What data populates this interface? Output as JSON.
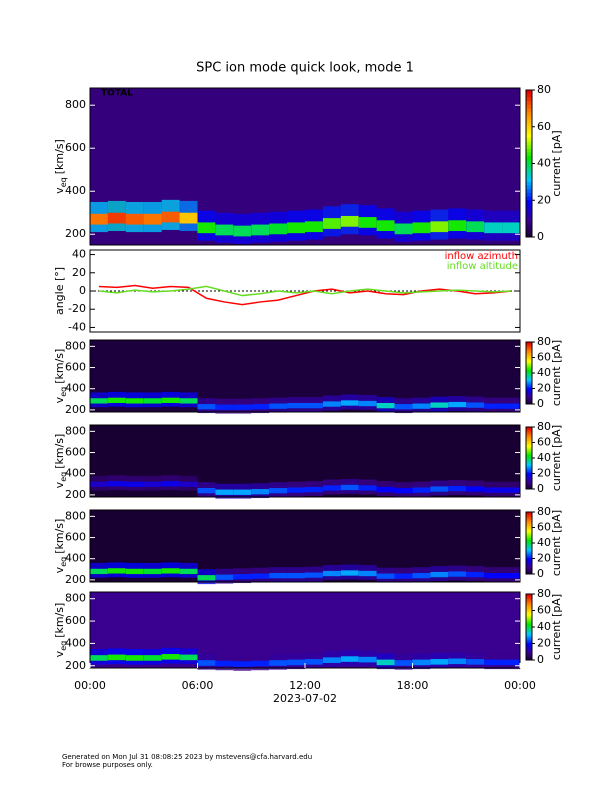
{
  "chart_data": [
    {
      "type": "spectrogram",
      "title": "SPC ion mode quick look, mode 1",
      "annotation": "TOTAL",
      "ylabel": {
        "symbol": "v",
        "subscript": "eq",
        "unit": "[km/s]"
      },
      "x": [
        0,
        1,
        2,
        3,
        4,
        5,
        6,
        7,
        8,
        9,
        10,
        11,
        12,
        13,
        14,
        15,
        16,
        17,
        18,
        19,
        20,
        21,
        22,
        23
      ],
      "values": [
        270,
        275,
        270,
        270,
        280,
        275,
        230,
        220,
        215,
        220,
        225,
        230,
        235,
        250,
        260,
        255,
        240,
        225,
        230,
        235,
        240,
        235,
        230,
        230
      ],
      "current": [
        70,
        75,
        72,
        70,
        72,
        62,
        45,
        40,
        40,
        40,
        42,
        45,
        45,
        48,
        50,
        45,
        45,
        40,
        45,
        50,
        45,
        40,
        35,
        35
      ],
      "background_current": 8,
      "xlim": [
        0,
        24
      ],
      "ylim": [
        150,
        880
      ],
      "yticks": [
        200,
        400,
        600,
        800
      ],
      "colorbar": {
        "label": "current [pA]",
        "lim": [
          0,
          80
        ],
        "ticks": [
          0,
          20,
          40,
          60,
          80
        ]
      }
    },
    {
      "type": "line",
      "ylabel": "angle [°]",
      "x": [
        0,
        1,
        2,
        3,
        4,
        5,
        6,
        7,
        8,
        9,
        10,
        11,
        12,
        13,
        14,
        15,
        16,
        17,
        18,
        19,
        20,
        21,
        22,
        23
      ],
      "series": [
        {
          "name": "inflow azimuth",
          "color": "#ff0000",
          "values": [
            5,
            4,
            6,
            3,
            5,
            4,
            -8,
            -12,
            -15,
            -12,
            -10,
            -5,
            0,
            2,
            -2,
            0,
            -3,
            -4,
            0,
            2,
            0,
            -3,
            -2,
            0
          ]
        },
        {
          "name": "inflow altitude",
          "color": "#66dd22",
          "values": [
            0,
            -2,
            1,
            -1,
            0,
            2,
            5,
            0,
            -5,
            -3,
            0,
            -2,
            0,
            -3,
            0,
            2,
            0,
            -2,
            -1,
            0,
            1,
            0,
            -1,
            0
          ]
        }
      ],
      "xlim": [
        0,
        24
      ],
      "ylim": [
        -45,
        45
      ],
      "yticks": [
        -40,
        -20,
        0,
        20,
        40
      ]
    },
    {
      "type": "spectrogram",
      "ylabel": {
        "symbol": "v",
        "subscript": "eq",
        "unit": "[km/s]"
      },
      "x": [
        0,
        1,
        2,
        3,
        4,
        5,
        6,
        7,
        8,
        9,
        10,
        11,
        12,
        13,
        14,
        15,
        16,
        17,
        18,
        19,
        20,
        21,
        22,
        23
      ],
      "values": [
        285,
        290,
        285,
        285,
        290,
        285,
        230,
        225,
        225,
        230,
        235,
        240,
        240,
        255,
        265,
        260,
        240,
        230,
        235,
        245,
        250,
        245,
        235,
        235
      ],
      "current": [
        40,
        45,
        45,
        42,
        45,
        40,
        25,
        22,
        22,
        22,
        25,
        25,
        25,
        28,
        30,
        28,
        35,
        25,
        28,
        35,
        30,
        25,
        22,
        22
      ],
      "background_current": 2,
      "xlim": [
        0,
        24
      ],
      "ylim": [
        180,
        860
      ],
      "yticks": [
        200,
        400,
        600,
        800
      ],
      "colorbar": {
        "label": "current [pA]",
        "lim": [
          0,
          80
        ],
        "ticks": [
          0,
          20,
          40,
          60,
          80
        ]
      }
    },
    {
      "type": "spectrogram",
      "ylabel": {
        "symbol": "v",
        "subscript": "eq",
        "unit": "[km/s]"
      },
      "x": [
        0,
        1,
        2,
        3,
        4,
        5,
        6,
        7,
        8,
        9,
        10,
        11,
        12,
        13,
        14,
        15,
        16,
        17,
        18,
        19,
        20,
        21,
        22,
        23
      ],
      "values": [
        300,
        305,
        300,
        300,
        305,
        300,
        240,
        225,
        225,
        230,
        240,
        245,
        250,
        265,
        270,
        265,
        250,
        240,
        245,
        255,
        260,
        255,
        245,
        245
      ],
      "current": [
        15,
        18,
        18,
        16,
        18,
        15,
        25,
        30,
        30,
        28,
        25,
        22,
        22,
        22,
        25,
        22,
        20,
        20,
        22,
        25,
        22,
        20,
        18,
        18
      ],
      "background_current": 1,
      "xlim": [
        0,
        24
      ],
      "ylim": [
        180,
        860
      ],
      "yticks": [
        200,
        400,
        600,
        800
      ],
      "colorbar": {
        "label": "current [pA]",
        "lim": [
          0,
          80
        ],
        "ticks": [
          0,
          20,
          40,
          60,
          80
        ]
      }
    },
    {
      "type": "spectrogram",
      "ylabel": {
        "symbol": "v",
        "subscript": "eq",
        "unit": "[km/s]"
      },
      "x": [
        0,
        1,
        2,
        3,
        4,
        5,
        6,
        7,
        8,
        9,
        10,
        11,
        12,
        13,
        14,
        15,
        16,
        17,
        18,
        19,
        20,
        21,
        22,
        23
      ],
      "values": [
        280,
        285,
        280,
        280,
        285,
        280,
        220,
        225,
        230,
        235,
        240,
        240,
        245,
        260,
        265,
        260,
        235,
        235,
        240,
        250,
        255,
        250,
        240,
        240
      ],
      "current": [
        40,
        45,
        45,
        42,
        45,
        40,
        40,
        25,
        22,
        22,
        25,
        25,
        25,
        28,
        30,
        28,
        25,
        22,
        25,
        28,
        25,
        22,
        20,
        20
      ],
      "background_current": 1,
      "xlim": [
        0,
        24
      ],
      "ylim": [
        180,
        860
      ],
      "yticks": [
        200,
        400,
        600,
        800
      ],
      "colorbar": {
        "label": "current [pA]",
        "lim": [
          0,
          80
        ],
        "ticks": [
          0,
          20,
          40,
          60,
          80
        ]
      }
    },
    {
      "type": "spectrogram",
      "ylabel": {
        "symbol": "v",
        "subscript": "eq",
        "unit": "[km/s]"
      },
      "x": [
        0,
        1,
        2,
        3,
        4,
        5,
        6,
        7,
        8,
        9,
        10,
        11,
        12,
        13,
        14,
        15,
        16,
        17,
        18,
        19,
        20,
        21,
        22,
        23
      ],
      "values": [
        270,
        275,
        270,
        270,
        280,
        275,
        225,
        220,
        215,
        220,
        225,
        230,
        235,
        250,
        260,
        255,
        230,
        225,
        230,
        235,
        240,
        235,
        230,
        230
      ],
      "current": [
        40,
        45,
        45,
        42,
        45,
        40,
        25,
        22,
        22,
        22,
        25,
        25,
        25,
        28,
        30,
        28,
        35,
        25,
        28,
        30,
        28,
        25,
        22,
        22
      ],
      "background_current": 10,
      "xlim": [
        0,
        24
      ],
      "ylim": [
        180,
        860
      ],
      "yticks": [
        200,
        400,
        600,
        800
      ],
      "colorbar": {
        "label": "current [pA]",
        "lim": [
          0,
          80
        ],
        "ticks": [
          0,
          20,
          40,
          60,
          80
        ]
      },
      "xlabel": "2023-07-02",
      "xticks": [
        {
          "value": 0,
          "label": "00:00"
        },
        {
          "value": 6,
          "label": "06:00"
        },
        {
          "value": 12,
          "label": "12:00"
        },
        {
          "value": 18,
          "label": "18:00"
        },
        {
          "value": 24,
          "label": "00:00"
        }
      ]
    }
  ],
  "footer": [
    "Generated on Mon Jul 31 08:08:25 2023 by mstevens@cfa.harvard.edu",
    "For browse purposes only."
  ]
}
